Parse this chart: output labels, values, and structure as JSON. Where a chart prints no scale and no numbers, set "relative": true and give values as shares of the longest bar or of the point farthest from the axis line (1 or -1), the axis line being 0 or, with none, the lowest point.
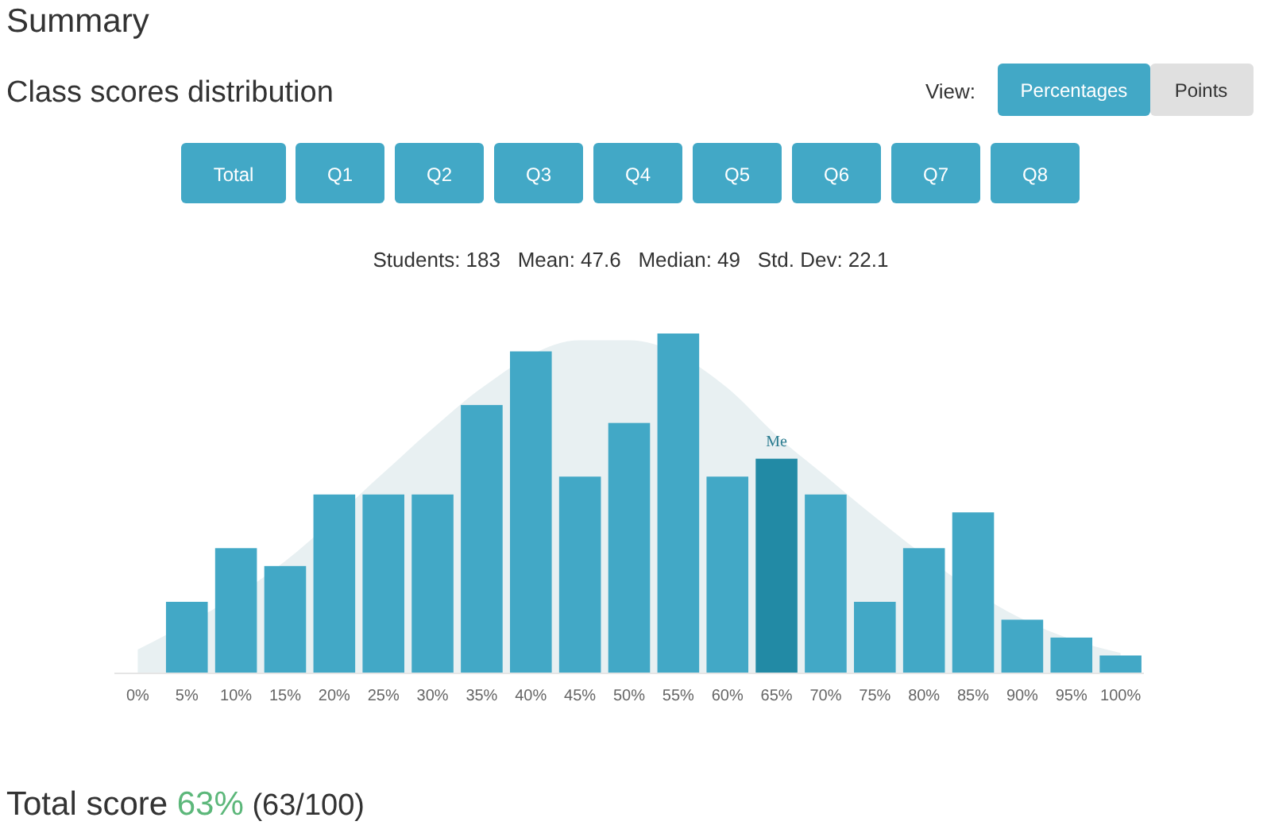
{
  "chart_data": {
    "type": "bar",
    "title": "Summary",
    "subtitle": "Class scores distribution",
    "relative": true,
    "categories": [
      "0%",
      "5%",
      "10%",
      "15%",
      "20%",
      "25%",
      "30%",
      "35%",
      "40%",
      "45%",
      "50%",
      "55%",
      "60%",
      "65%",
      "70%",
      "75%",
      "80%",
      "85%",
      "90%",
      "95%",
      "100%"
    ],
    "series": [
      {
        "type": "area",
        "color": "#e8f0f2",
        "values": [
          0.07,
          null,
          null,
          0.33,
          null,
          0.59,
          0.72,
          0.84,
          null,
          0.98,
          0.98,
          null,
          0.84,
          0.7,
          0.58,
          0.46,
          null,
          null,
          0.16,
          0.1,
          0.06
        ]
      },
      {
        "colors": [
          "#42a8c6",
          "#42a8c6",
          "#42a8c6",
          "#42a8c6",
          "#42a8c6",
          "#42a8c6",
          "#42a8c6",
          "#42a8c6",
          "#42a8c6",
          "#42a8c6",
          "#42a8c6",
          "#42a8c6",
          "#42a8c6",
          "#228aa5",
          "#42a8c6",
          "#42a8c6",
          "#42a8c6",
          "#42a8c6",
          "#42a8c6",
          "#42a8c6",
          "#42a8c6"
        ],
        "values": [
          0,
          0.2105,
          0.3684,
          0.3158,
          0.5263,
          0.5263,
          0.5263,
          0.7895,
          0.9474,
          0.5789,
          0.7368,
          1,
          0.5789,
          0.6316,
          0.5263,
          0.2105,
          0.3684,
          0.4737,
          0.1579,
          0.1053,
          0.0526
        ]
      }
    ],
    "annotations": [
      {
        "text": "Me",
        "x": "65%",
        "y": 0.6316
      },
      "Students: 183   Mean: 47.6   Median: 49   Std. Dev: 22.1",
      "View:",
      "Percentages",
      "Points",
      "Total",
      "Q1",
      "Q2",
      "Q3",
      "Q4",
      "Q5",
      "Q6",
      "Q7",
      "Q8",
      "Total score",
      "63%",
      "(63/100)"
    ]
  }
}
